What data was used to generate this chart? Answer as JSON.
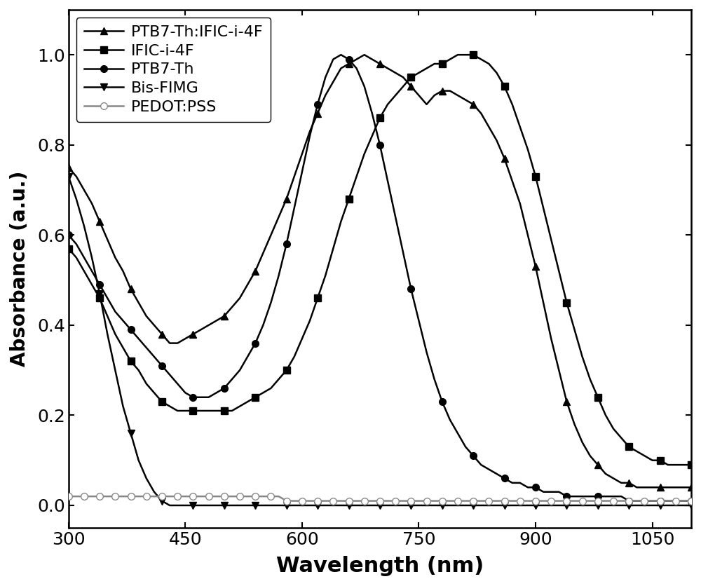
{
  "title": "",
  "xlabel": "Wavelength (nm)",
  "ylabel": "Absorbance (a.u.)",
  "xlim": [
    300,
    1100
  ],
  "ylim": [
    -0.05,
    1.1
  ],
  "yticks": [
    0.0,
    0.2,
    0.4,
    0.6,
    0.8,
    1.0
  ],
  "xticks": [
    300,
    450,
    600,
    750,
    900,
    1050
  ],
  "series": {
    "PTB7-Th:IFIC-i-4F": {
      "marker": "^",
      "color": "#000000",
      "linewidth": 1.8,
      "markersize": 7,
      "x": [
        300,
        310,
        320,
        330,
        340,
        350,
        360,
        370,
        380,
        390,
        400,
        410,
        420,
        430,
        440,
        450,
        460,
        470,
        480,
        490,
        500,
        510,
        520,
        530,
        540,
        550,
        560,
        570,
        580,
        590,
        600,
        610,
        620,
        630,
        640,
        650,
        660,
        670,
        680,
        690,
        700,
        710,
        720,
        730,
        740,
        750,
        760,
        770,
        780,
        790,
        800,
        810,
        820,
        830,
        840,
        850,
        860,
        870,
        880,
        890,
        900,
        910,
        920,
        930,
        940,
        950,
        960,
        970,
        980,
        990,
        1000,
        1010,
        1020,
        1030,
        1040,
        1050,
        1060,
        1070,
        1080,
        1090,
        1100
      ],
      "y": [
        0.75,
        0.73,
        0.7,
        0.67,
        0.63,
        0.59,
        0.55,
        0.52,
        0.48,
        0.45,
        0.42,
        0.4,
        0.38,
        0.36,
        0.36,
        0.37,
        0.38,
        0.39,
        0.4,
        0.41,
        0.42,
        0.44,
        0.46,
        0.49,
        0.52,
        0.56,
        0.6,
        0.64,
        0.68,
        0.73,
        0.78,
        0.83,
        0.87,
        0.91,
        0.94,
        0.97,
        0.98,
        0.99,
        1.0,
        0.99,
        0.98,
        0.97,
        0.96,
        0.95,
        0.93,
        0.91,
        0.89,
        0.91,
        0.92,
        0.92,
        0.91,
        0.9,
        0.89,
        0.87,
        0.84,
        0.81,
        0.77,
        0.72,
        0.67,
        0.6,
        0.53,
        0.45,
        0.37,
        0.3,
        0.23,
        0.18,
        0.14,
        0.11,
        0.09,
        0.07,
        0.06,
        0.05,
        0.05,
        0.04,
        0.04,
        0.04,
        0.04,
        0.04,
        0.04,
        0.04,
        0.04
      ]
    },
    "IFIC-i-4F": {
      "marker": "s",
      "color": "#000000",
      "linewidth": 1.8,
      "markersize": 7,
      "x": [
        300,
        310,
        320,
        330,
        340,
        350,
        360,
        370,
        380,
        390,
        400,
        410,
        420,
        430,
        440,
        450,
        460,
        470,
        480,
        490,
        500,
        510,
        520,
        530,
        540,
        550,
        560,
        570,
        580,
        590,
        600,
        610,
        620,
        630,
        640,
        650,
        660,
        670,
        680,
        690,
        700,
        710,
        720,
        730,
        740,
        750,
        760,
        770,
        780,
        790,
        800,
        810,
        820,
        830,
        840,
        850,
        860,
        870,
        880,
        890,
        900,
        910,
        920,
        930,
        940,
        950,
        960,
        970,
        980,
        990,
        1000,
        1010,
        1020,
        1030,
        1040,
        1050,
        1060,
        1070,
        1080,
        1090,
        1100
      ],
      "y": [
        0.57,
        0.55,
        0.52,
        0.49,
        0.46,
        0.42,
        0.38,
        0.35,
        0.32,
        0.3,
        0.27,
        0.25,
        0.23,
        0.22,
        0.21,
        0.21,
        0.21,
        0.21,
        0.21,
        0.21,
        0.21,
        0.21,
        0.22,
        0.23,
        0.24,
        0.25,
        0.26,
        0.28,
        0.3,
        0.33,
        0.37,
        0.41,
        0.46,
        0.51,
        0.57,
        0.63,
        0.68,
        0.73,
        0.78,
        0.82,
        0.86,
        0.89,
        0.91,
        0.93,
        0.95,
        0.96,
        0.97,
        0.98,
        0.98,
        0.99,
        1.0,
        1.0,
        1.0,
        0.99,
        0.98,
        0.96,
        0.93,
        0.89,
        0.84,
        0.79,
        0.73,
        0.66,
        0.59,
        0.52,
        0.45,
        0.39,
        0.33,
        0.28,
        0.24,
        0.2,
        0.17,
        0.15,
        0.13,
        0.12,
        0.11,
        0.1,
        0.1,
        0.09,
        0.09,
        0.09,
        0.09
      ]
    },
    "PTB7-Th": {
      "marker": "o",
      "color": "#000000",
      "linewidth": 1.8,
      "markersize": 7,
      "x": [
        300,
        310,
        320,
        330,
        340,
        350,
        360,
        370,
        380,
        390,
        400,
        410,
        420,
        430,
        440,
        450,
        460,
        470,
        480,
        490,
        500,
        510,
        520,
        530,
        540,
        550,
        560,
        570,
        580,
        590,
        600,
        610,
        620,
        630,
        640,
        650,
        660,
        670,
        680,
        690,
        700,
        710,
        720,
        730,
        740,
        750,
        760,
        770,
        780,
        790,
        800,
        810,
        820,
        830,
        840,
        850,
        860,
        870,
        880,
        890,
        900,
        910,
        920,
        930,
        940,
        950,
        960,
        970,
        980,
        990,
        1000,
        1010,
        1020,
        1030,
        1040,
        1050,
        1060,
        1070,
        1080,
        1090,
        1100
      ],
      "y": [
        0.6,
        0.58,
        0.55,
        0.52,
        0.49,
        0.46,
        0.43,
        0.41,
        0.39,
        0.37,
        0.35,
        0.33,
        0.31,
        0.29,
        0.27,
        0.25,
        0.24,
        0.24,
        0.24,
        0.25,
        0.26,
        0.28,
        0.3,
        0.33,
        0.36,
        0.4,
        0.45,
        0.51,
        0.58,
        0.66,
        0.74,
        0.82,
        0.89,
        0.95,
        0.99,
        1.0,
        0.99,
        0.97,
        0.93,
        0.87,
        0.8,
        0.72,
        0.64,
        0.56,
        0.48,
        0.41,
        0.34,
        0.28,
        0.23,
        0.19,
        0.16,
        0.13,
        0.11,
        0.09,
        0.08,
        0.07,
        0.06,
        0.05,
        0.05,
        0.04,
        0.04,
        0.03,
        0.03,
        0.03,
        0.02,
        0.02,
        0.02,
        0.02,
        0.02,
        0.02,
        0.02,
        0.02,
        0.01,
        0.01,
        0.01,
        0.01,
        0.01,
        0.01,
        0.01,
        0.01,
        0.01
      ]
    },
    "Bis-FIMG": {
      "marker": "v",
      "color": "#000000",
      "linewidth": 1.8,
      "markersize": 7,
      "x": [
        300,
        310,
        320,
        330,
        340,
        350,
        360,
        370,
        380,
        390,
        400,
        410,
        420,
        430,
        440,
        450,
        460,
        470,
        480,
        490,
        500,
        510,
        520,
        530,
        540,
        550,
        560,
        570,
        580,
        590,
        600,
        610,
        620,
        630,
        640,
        650,
        660,
        670,
        680,
        690,
        700,
        710,
        720,
        730,
        740,
        750,
        760,
        770,
        780,
        790,
        800,
        810,
        820,
        830,
        840,
        850,
        860,
        870,
        880,
        890,
        900,
        910,
        920,
        930,
        940,
        950,
        960,
        970,
        980,
        990,
        1000,
        1010,
        1020,
        1030,
        1040,
        1050,
        1060,
        1070,
        1080,
        1090,
        1100
      ],
      "y": [
        0.73,
        0.68,
        0.62,
        0.55,
        0.47,
        0.38,
        0.3,
        0.22,
        0.16,
        0.1,
        0.06,
        0.03,
        0.01,
        0.0,
        0.0,
        0.0,
        0.0,
        0.0,
        0.0,
        0.0,
        0.0,
        0.0,
        0.0,
        0.0,
        0.0,
        0.0,
        0.0,
        0.0,
        0.0,
        0.0,
        0.0,
        0.0,
        0.0,
        0.0,
        0.0,
        0.0,
        0.0,
        0.0,
        0.0,
        0.0,
        0.0,
        0.0,
        0.0,
        0.0,
        0.0,
        0.0,
        0.0,
        0.0,
        0.0,
        0.0,
        0.0,
        0.0,
        0.0,
        0.0,
        0.0,
        0.0,
        0.0,
        0.0,
        0.0,
        0.0,
        0.0,
        0.0,
        0.0,
        0.0,
        0.0,
        0.0,
        0.0,
        0.0,
        0.0,
        0.0,
        0.0,
        0.0,
        0.0,
        0.0,
        0.0,
        0.0,
        0.0,
        0.0,
        0.0,
        0.0,
        0.0
      ]
    },
    "PEDOT:PSS": {
      "marker": "o",
      "color": "#888888",
      "linewidth": 1.8,
      "markersize": 7,
      "markerfacecolor": "white",
      "x": [
        300,
        310,
        320,
        330,
        340,
        350,
        360,
        370,
        380,
        390,
        400,
        410,
        420,
        430,
        440,
        450,
        460,
        470,
        480,
        490,
        500,
        510,
        520,
        530,
        540,
        550,
        560,
        570,
        580,
        590,
        600,
        610,
        620,
        630,
        640,
        650,
        660,
        670,
        680,
        690,
        700,
        710,
        720,
        730,
        740,
        750,
        760,
        770,
        780,
        790,
        800,
        810,
        820,
        830,
        840,
        850,
        860,
        870,
        880,
        890,
        900,
        910,
        920,
        930,
        940,
        950,
        960,
        970,
        980,
        990,
        1000,
        1010,
        1020,
        1030,
        1040,
        1050,
        1060,
        1070,
        1080,
        1090,
        1100
      ],
      "y": [
        0.02,
        0.02,
        0.02,
        0.02,
        0.02,
        0.02,
        0.02,
        0.02,
        0.02,
        0.02,
        0.02,
        0.02,
        0.02,
        0.02,
        0.02,
        0.02,
        0.02,
        0.02,
        0.02,
        0.02,
        0.02,
        0.02,
        0.02,
        0.02,
        0.02,
        0.02,
        0.02,
        0.02,
        0.01,
        0.01,
        0.01,
        0.01,
        0.01,
        0.01,
        0.01,
        0.01,
        0.01,
        0.01,
        0.01,
        0.01,
        0.01,
        0.01,
        0.01,
        0.01,
        0.01,
        0.01,
        0.01,
        0.01,
        0.01,
        0.01,
        0.01,
        0.01,
        0.01,
        0.01,
        0.01,
        0.01,
        0.01,
        0.01,
        0.01,
        0.01,
        0.01,
        0.01,
        0.01,
        0.01,
        0.01,
        0.01,
        0.01,
        0.01,
        0.01,
        0.01,
        0.01,
        0.01,
        0.01,
        0.01,
        0.01,
        0.01,
        0.01,
        0.01,
        0.01,
        0.01,
        0.01
      ]
    }
  }
}
